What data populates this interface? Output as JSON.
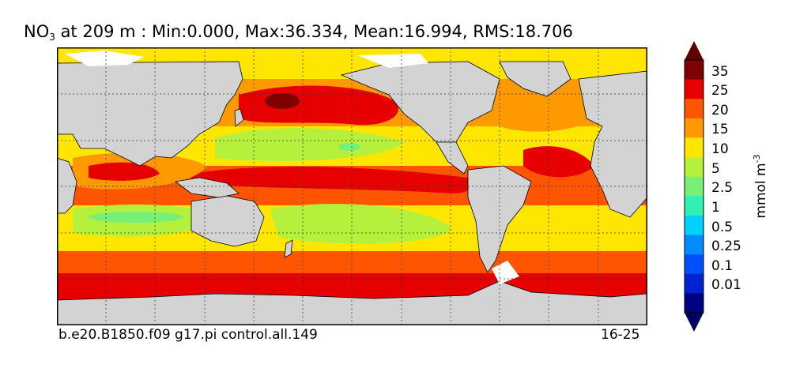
{
  "title": {
    "variable": "NO",
    "variable_sub": "3",
    "rest": " at 209 m : Min:0.000, Max:36.334, Mean:16.994, RMS:18.706"
  },
  "footer": {
    "case": "b.e20.B1850.f09 g17.pi control.all.149",
    "years": "16-25"
  },
  "colorbar": {
    "unit": "mmol m",
    "unit_exp": "-3",
    "labels": [
      "35",
      "25",
      "20",
      "15",
      "10",
      "5",
      "2.5",
      "1",
      "0.5",
      "0.25",
      "0.1",
      "0.01"
    ],
    "colors": [
      "#800000",
      "#e60000",
      "#ff5500",
      "#ff9900",
      "#ffe600",
      "#b4f03c",
      "#78f078",
      "#32f0b4",
      "#00d2ff",
      "#008cff",
      "#0050ff",
      "#0022d0",
      "#000080"
    ],
    "under_color": "#000060",
    "over_color": "#600000"
  },
  "map": {
    "land_color": "#d3d3d3",
    "ice_color": "#ffffff"
  }
}
